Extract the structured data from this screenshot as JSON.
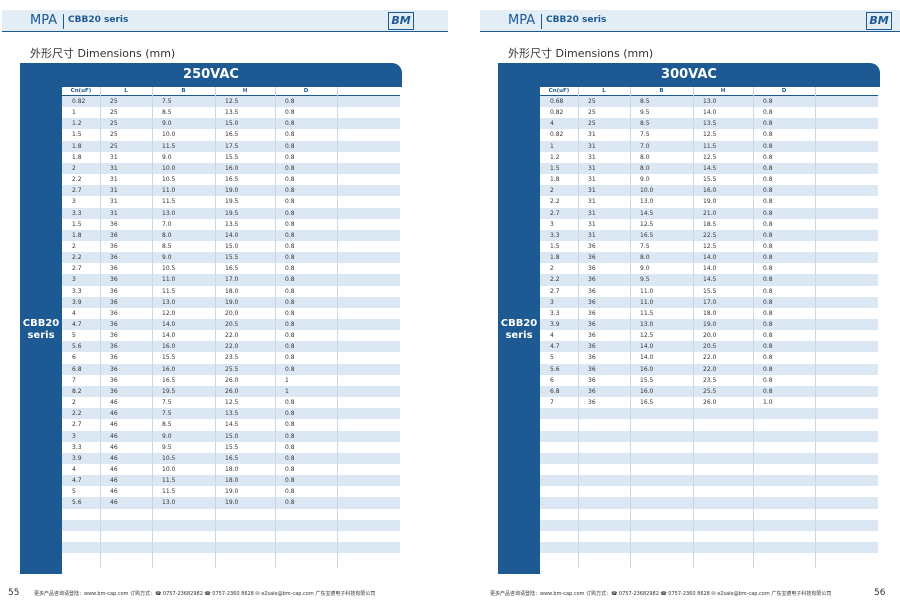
{
  "pages": [
    {
      "header": {
        "brand": "MPA",
        "series": "CBB20 seris",
        "logo": "BM"
      },
      "subtitle": "外形尺寸 Dimensions (mm)",
      "table": {
        "title": "250VAC",
        "side_label": "CBB20 seris",
        "columns": [
          "Cn(uF)",
          "L",
          "B",
          "H",
          "D"
        ],
        "rows": [
          [
            "0.82",
            "25",
            "7.5",
            "12.5",
            "0.8"
          ],
          [
            "1",
            "25",
            "8.5",
            "13.5",
            "0.8"
          ],
          [
            "1.2",
            "25",
            "9.0",
            "15.0",
            "0.8"
          ],
          [
            "1.5",
            "25",
            "10.0",
            "16.5",
            "0.8"
          ],
          [
            "1.8",
            "25",
            "11.5",
            "17.5",
            "0.8"
          ],
          [
            "1.8",
            "31",
            "9.0",
            "15.5",
            "0.8"
          ],
          [
            "2",
            "31",
            "10.0",
            "16.0",
            "0.8"
          ],
          [
            "2.2",
            "31",
            "10.5",
            "16.5",
            "0.8"
          ],
          [
            "2.7",
            "31",
            "11.0",
            "19.0",
            "0.8"
          ],
          [
            "3",
            "31",
            "11.5",
            "19.5",
            "0.8"
          ],
          [
            "3.3",
            "31",
            "13.0",
            "19.5",
            "0.8"
          ],
          [
            "1.5",
            "36",
            "7.0",
            "13.5",
            "0.8"
          ],
          [
            "1.8",
            "36",
            "8.0",
            "14.0",
            "0.8"
          ],
          [
            "2",
            "36",
            "8.5",
            "15.0",
            "0.8"
          ],
          [
            "2.2",
            "36",
            "9.0",
            "15.5",
            "0.8"
          ],
          [
            "2.7",
            "36",
            "10.5",
            "16.5",
            "0.8"
          ],
          [
            "3",
            "36",
            "11.0",
            "17.0",
            "0.8"
          ],
          [
            "3.3",
            "36",
            "11.5",
            "18.0",
            "0.8"
          ],
          [
            "3.9",
            "36",
            "13.0",
            "19.0",
            "0.8"
          ],
          [
            "4",
            "36",
            "12.0",
            "20.0",
            "0.8"
          ],
          [
            "4.7",
            "36",
            "14.0",
            "20.5",
            "0.8"
          ],
          [
            "5",
            "36",
            "14.0",
            "22.0",
            "0.8"
          ],
          [
            "5.6",
            "36",
            "16.0",
            "22.0",
            "0.8"
          ],
          [
            "6",
            "36",
            "15.5",
            "23.5",
            "0.8"
          ],
          [
            "6.8",
            "36",
            "16.0",
            "25.5",
            "0.8"
          ],
          [
            "7",
            "36",
            "16.5",
            "26.0",
            "1"
          ],
          [
            "8.2",
            "36",
            "19.5",
            "26.0",
            "1"
          ],
          [
            "2",
            "46",
            "7.5",
            "12.5",
            "0.8"
          ],
          [
            "2.2",
            "46",
            "7.5",
            "13.5",
            "0.8"
          ],
          [
            "2.7",
            "46",
            "8.5",
            "14.5",
            "0.8"
          ],
          [
            "3",
            "46",
            "9.0",
            "15.0",
            "0.8"
          ],
          [
            "3.3",
            "46",
            "9.5",
            "15.5",
            "0.8"
          ],
          [
            "3.9",
            "46",
            "10.5",
            "16.5",
            "0.8"
          ],
          [
            "4",
            "46",
            "10.0",
            "18.0",
            "0.8"
          ],
          [
            "4.7",
            "46",
            "11.5",
            "18.0",
            "0.8"
          ],
          [
            "5",
            "46",
            "11.5",
            "19.0",
            "0.8"
          ],
          [
            "5.6",
            "46",
            "13.0",
            "19.0",
            "0.8"
          ]
        ]
      },
      "footer": {
        "page": "55",
        "text": "更多产品咨询请登陆：www.bm-cap.com  订购方式：☎ 0757-23682982   ☎ 0757-2360 8628   ✉ e2sale@bm-cap.com   广东宝德电子科技有限公司"
      }
    },
    {
      "header": {
        "brand": "MPA",
        "series": "CBB20 seris",
        "logo": "BM"
      },
      "subtitle": "外形尺寸 Dimensions (mm)",
      "table": {
        "title": "300VAC",
        "side_label": "CBB20 seris",
        "columns": [
          "Cn(uF)",
          "L",
          "B",
          "H",
          "D"
        ],
        "rows": [
          [
            "0.68",
            "25",
            "8.5",
            "13.0",
            "0.8"
          ],
          [
            "0.82",
            "25",
            "9.5",
            "14.0",
            "0.8"
          ],
          [
            "4",
            "25",
            "8.5",
            "13.5",
            "0.8"
          ],
          [
            "0.82",
            "31",
            "7.5",
            "12.5",
            "0.8"
          ],
          [
            "1",
            "31",
            "7.0",
            "11.5",
            "0.8"
          ],
          [
            "1.2",
            "31",
            "8.0",
            "12.5",
            "0.8"
          ],
          [
            "1.5",
            "31",
            "8.0",
            "14.5",
            "0.8"
          ],
          [
            "1.8",
            "31",
            "9.0",
            "15.5",
            "0.8"
          ],
          [
            "2",
            "31",
            "10.0",
            "16.0",
            "0.8"
          ],
          [
            "2.2",
            "31",
            "13.0",
            "19.0",
            "0.8"
          ],
          [
            "2.7",
            "31",
            "14.5",
            "21.0",
            "0.8"
          ],
          [
            "3",
            "31",
            "12.5",
            "18.5",
            "0.8"
          ],
          [
            "3.3",
            "31",
            "16.5",
            "22.5",
            "0.8"
          ],
          [
            "1.5",
            "36",
            "7.5",
            "12.5",
            "0.8"
          ],
          [
            "1.8",
            "36",
            "8.0",
            "14.0",
            "0.8"
          ],
          [
            "2",
            "36",
            "9.0",
            "14.0",
            "0.8"
          ],
          [
            "2.2",
            "36",
            "9.5",
            "14.5",
            "0.8"
          ],
          [
            "2.7",
            "36",
            "11.0",
            "15.5",
            "0.8"
          ],
          [
            "3",
            "36",
            "11.0",
            "17.0",
            "0.8"
          ],
          [
            "3.3",
            "36",
            "11.5",
            "18.0",
            "0.8"
          ],
          [
            "3.9",
            "36",
            "13.0",
            "19.0",
            "0.8"
          ],
          [
            "4",
            "36",
            "12.5",
            "20.0",
            "0.8"
          ],
          [
            "4.7",
            "36",
            "14.0",
            "20.5",
            "0.8"
          ],
          [
            "5",
            "36",
            "14.0",
            "22.0",
            "0.8"
          ],
          [
            "5.6",
            "36",
            "16.0",
            "22.0",
            "0.8"
          ],
          [
            "6",
            "36",
            "15.5",
            "23.5",
            "0.8"
          ],
          [
            "6.8",
            "36",
            "16.0",
            "25.5",
            "0.8"
          ],
          [
            "7",
            "36",
            "16.5",
            "26.0",
            "1.0"
          ]
        ]
      },
      "footer": {
        "page": "56",
        "text": "更多产品咨询请登陆：www.bm-cap.com  订购方式：☎ 0757-23682982   ☎ 0757-2360 8628   ✉ e2sale@bm-cap.com   广东宝德电子科技有限公司"
      }
    }
  ]
}
